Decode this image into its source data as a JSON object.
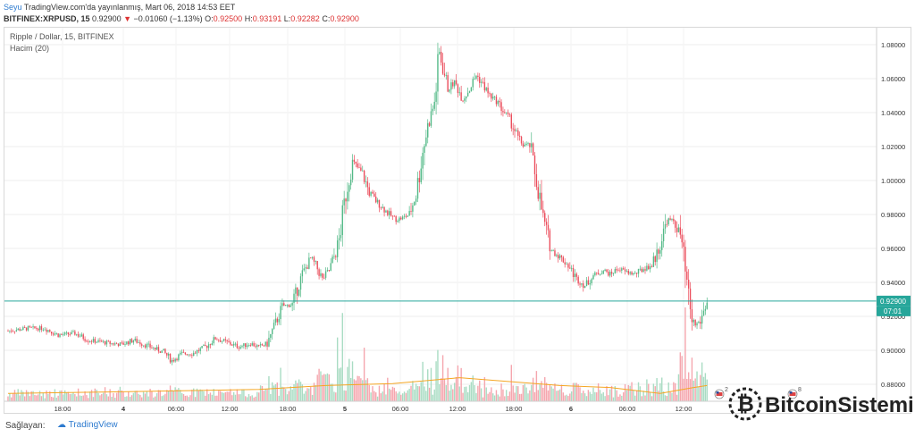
{
  "header": {
    "author": "Seyu",
    "published": "TradingView.com'da yayınlanmış, Mart 06, 2018 14:53 EET",
    "symbol": "BITFINEX:XRPUSD, 15",
    "last": "0.92900",
    "change_arrow": "▼",
    "change": "−0.01060 (−1.13%)",
    "open_label": "O:",
    "open": "0.92500",
    "high_label": "H:",
    "high": "0.93191",
    "low_label": "L:",
    "low": "0.92282",
    "close_label": "C:",
    "close": "0.92900"
  },
  "legend": {
    "series_title": "Ripple / Dollar, 15, BITFINEX",
    "volume_title": "Hacim (20)"
  },
  "footer": {
    "provided_by": "Sağlayan:",
    "tradingview": "TradingView",
    "watermark": "BitcoinSistemi"
  },
  "chart_data": {
    "type": "candlestick",
    "ylim": [
      0.87,
      1.09
    ],
    "y_ticks": [
      "1.08000",
      "1.06000",
      "1.04000",
      "1.02000",
      "1.00000",
      "0.98000",
      "0.96000",
      "0.94000",
      "0.92000",
      "0.90000",
      "0.88000"
    ],
    "x_ticks": [
      "18:00",
      "4",
      "06:00",
      "12:00",
      "18:00",
      "5",
      "06:00",
      "12:00",
      "18:00",
      "6",
      "06:00",
      "12:00"
    ],
    "last_price_label": "0.92900",
    "countdown_label": "07:01",
    "event_markers": [
      "2",
      "8"
    ],
    "colors": {
      "up": "#53b987",
      "down": "#eb4d5c",
      "vol_up": "#a9dcc3",
      "vol_down": "#f5a6ae",
      "ma": "#f5a623",
      "last": "#26a69a"
    },
    "anchors": [
      [
        0,
        0.9115
      ],
      [
        12,
        0.913
      ],
      [
        22,
        0.913
      ],
      [
        30,
        0.909
      ],
      [
        40,
        0.91
      ],
      [
        48,
        0.906
      ],
      [
        55,
        0.905
      ],
      [
        62,
        0.904
      ],
      [
        68,
        0.9035
      ],
      [
        75,
        0.906
      ],
      [
        85,
        0.902
      ],
      [
        93,
        0.899
      ],
      [
        98,
        0.894
      ],
      [
        104,
        0.898
      ],
      [
        110,
        0.898
      ],
      [
        118,
        0.902
      ],
      [
        124,
        0.907
      ],
      [
        130,
        0.905
      ],
      [
        138,
        0.902
      ],
      [
        145,
        0.904
      ],
      [
        150,
        0.902
      ],
      [
        155,
        0.904
      ],
      [
        160,
        0.916
      ],
      [
        164,
        0.926
      ],
      [
        170,
        0.927
      ],
      [
        176,
        0.945
      ],
      [
        181,
        0.954
      ],
      [
        184,
        0.95
      ],
      [
        188,
        0.942
      ],
      [
        192,
        0.947
      ],
      [
        196,
        0.958
      ],
      [
        198,
        0.965
      ],
      [
        202,
        0.992
      ],
      [
        206,
        1.011
      ],
      [
        212,
        1.004
      ],
      [
        216,
        0.993
      ],
      [
        220,
        0.988
      ],
      [
        224,
        0.984
      ],
      [
        228,
        0.98
      ],
      [
        232,
        0.977
      ],
      [
        236,
        0.978
      ],
      [
        240,
        0.98
      ],
      [
        244,
        0.992
      ],
      [
        248,
        1.017
      ],
      [
        251,
        1.032
      ],
      [
        255,
        1.046
      ],
      [
        258,
        1.075
      ],
      [
        263,
        1.054
      ],
      [
        267,
        1.058
      ],
      [
        272,
        1.048
      ],
      [
        276,
        1.054
      ],
      [
        280,
        1.062
      ],
      [
        283,
        1.058
      ],
      [
        288,
        1.05
      ],
      [
        293,
        1.046
      ],
      [
        296,
        1.041
      ],
      [
        300,
        1.036
      ],
      [
        305,
        1.025
      ],
      [
        308,
        1.021
      ],
      [
        312,
        1.021
      ],
      [
        316,
        1.0
      ],
      [
        320,
        0.978
      ],
      [
        325,
        0.959
      ],
      [
        330,
        0.955
      ],
      [
        335,
        0.95
      ],
      [
        340,
        0.942
      ],
      [
        345,
        0.938
      ],
      [
        350,
        0.944
      ],
      [
        356,
        0.947
      ],
      [
        360,
        0.945
      ],
      [
        365,
        0.948
      ],
      [
        370,
        0.946
      ],
      [
        375,
        0.945
      ],
      [
        380,
        0.948
      ],
      [
        385,
        0.95
      ],
      [
        390,
        0.962
      ],
      [
        394,
        0.977
      ],
      [
        398,
        0.976
      ],
      [
        402,
        0.968
      ],
      [
        405,
        0.945
      ],
      [
        407,
        0.93
      ],
      [
        409,
        0.918
      ],
      [
        411,
        0.915
      ],
      [
        414,
        0.917
      ],
      [
        418,
        0.929
      ]
    ],
    "volume_ma": [
      [
        0,
        0.008
      ],
      [
        80,
        0.01
      ],
      [
        150,
        0.012
      ],
      [
        190,
        0.016
      ],
      [
        230,
        0.018
      ],
      [
        270,
        0.024
      ],
      [
        300,
        0.02
      ],
      [
        330,
        0.016
      ],
      [
        360,
        0.014
      ],
      [
        390,
        0.008
      ],
      [
        410,
        0.014
      ],
      [
        418,
        0.016
      ]
    ]
  }
}
